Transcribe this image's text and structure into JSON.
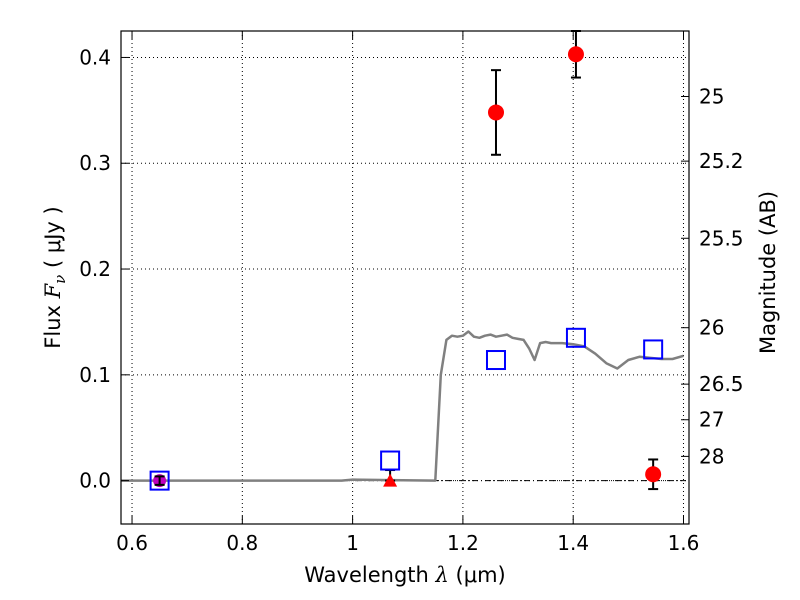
{
  "chart_data": {
    "type": "scatter",
    "xlabel": {
      "prefix": "Wavelength ",
      "symbol": "λ",
      "unit_open": " (",
      "unit": "μm",
      "unit_close": ")"
    },
    "ylabel": {
      "prefix": "Flux ",
      "symbol": "F",
      "subscript": "ν",
      "unit_open": " ( ",
      "unit": "μJy",
      "unit_close": " )"
    },
    "ylabel_right": "Magnitude (AB)",
    "xlim": [
      0.58,
      1.61
    ],
    "ylim": [
      -0.041,
      0.425
    ],
    "x_ticks": [
      0.6,
      0.8,
      1.0,
      1.2,
      1.4,
      1.6
    ],
    "x_tick_labels": [
      "0.6",
      "0.8",
      "1",
      "1.2",
      "1.4",
      "1.6"
    ],
    "y_ticks": [
      0.0,
      0.1,
      0.2,
      0.3,
      0.4
    ],
    "y_tick_labels": [
      "0.0",
      "0.1",
      "0.2",
      "0.3",
      "0.4"
    ],
    "right_ticks": [
      {
        "label": "25",
        "mag": 25.0
      },
      {
        "label": "25.2",
        "mag": 25.2
      },
      {
        "label": "25.5",
        "mag": 25.5
      },
      {
        "label": "26",
        "mag": 26.0
      },
      {
        "label": "26.5",
        "mag": 26.5
      },
      {
        "label": "27",
        "mag": 27.0
      },
      {
        "label": "28",
        "mag": 28.0
      }
    ],
    "grid": true,
    "colors": {
      "detections": "#ff0000",
      "model_photometry": "#0000ff",
      "model_spectrum": "#808080",
      "purple_point": "#bf00bf",
      "error_bars": "#000000"
    },
    "model_spectrum": {
      "x": [
        0.58,
        0.98,
        1.0,
        1.15,
        1.16,
        1.17,
        1.18,
        1.19,
        1.2,
        1.21,
        1.22,
        1.23,
        1.24,
        1.25,
        1.26,
        1.27,
        1.28,
        1.29,
        1.3,
        1.31,
        1.32,
        1.33,
        1.34,
        1.35,
        1.36,
        1.38,
        1.4,
        1.42,
        1.44,
        1.46,
        1.48,
        1.5,
        1.52,
        1.54,
        1.56,
        1.58,
        1.6
      ],
      "y": [
        0.0,
        0.0,
        0.001,
        0.0,
        0.1,
        0.133,
        0.137,
        0.136,
        0.137,
        0.141,
        0.136,
        0.135,
        0.137,
        0.138,
        0.136,
        0.137,
        0.138,
        0.135,
        0.134,
        0.133,
        0.125,
        0.114,
        0.13,
        0.131,
        0.13,
        0.13,
        0.129,
        0.127,
        0.12,
        0.111,
        0.106,
        0.114,
        0.117,
        0.116,
        0.115,
        0.115,
        0.118
      ]
    },
    "detections": [
      {
        "x": 1.26,
        "y": 0.348,
        "yerr": 0.04
      },
      {
        "x": 1.405,
        "y": 0.403,
        "yerr": 0.022
      },
      {
        "x": 1.545,
        "y": 0.006,
        "yerr": 0.014
      }
    ],
    "upper_limit": {
      "x": 1.068,
      "y": 0.0,
      "yerr_up": 0.01
    },
    "model_photometry": [
      {
        "x": 0.65,
        "y": 0.0
      },
      {
        "x": 1.068,
        "y": 0.019
      },
      {
        "x": 1.26,
        "y": 0.114
      },
      {
        "x": 1.405,
        "y": 0.135
      },
      {
        "x": 1.545,
        "y": 0.124
      }
    ],
    "purple_point": {
      "x": 0.65,
      "y": 0.0,
      "yerr": 0.004
    }
  }
}
